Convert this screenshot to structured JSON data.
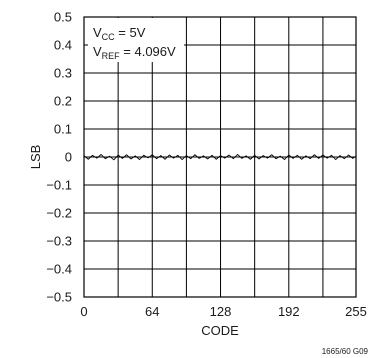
{
  "chart_data": {
    "type": "line",
    "title": "",
    "xlabel": "CODE",
    "ylabel": "LSB",
    "xlim": [
      0,
      255
    ],
    "ylim": [
      -0.5,
      0.5
    ],
    "x_ticks": [
      0,
      64,
      128,
      192,
      255
    ],
    "x_tick_labels": [
      "0",
      "64",
      "128",
      "192",
      "255"
    ],
    "x_grid": [
      0,
      32,
      64,
      96,
      128,
      160,
      192,
      224,
      255
    ],
    "y_ticks": [
      0.5,
      0.4,
      0.3,
      0.2,
      0.1,
      0,
      -0.1,
      -0.2,
      -0.3,
      -0.4,
      -0.5
    ],
    "y_tick_labels": [
      "0.5",
      "0.4",
      "0.3",
      "0.2",
      "0.1",
      "0",
      "−0.1",
      "−0.2",
      "−0.3",
      "−0.4",
      "−0.5"
    ],
    "grid": true,
    "legend": "none",
    "annotations": {
      "line1_main": "V",
      "line1_sub": "CC",
      "line1_rest": " = 5V",
      "line2_main": "V",
      "line2_sub": "REF",
      "line2_rest": " = 4.096V"
    },
    "series": [
      {
        "color": "#000000",
        "x": [
          0,
          4,
          8,
          12,
          16,
          20,
          24,
          28,
          32,
          36,
          40,
          44,
          48,
          52,
          56,
          60,
          64,
          68,
          72,
          76,
          80,
          84,
          88,
          92,
          96,
          100,
          104,
          108,
          112,
          116,
          120,
          124,
          128,
          132,
          136,
          140,
          144,
          148,
          152,
          156,
          160,
          164,
          168,
          172,
          176,
          180,
          184,
          188,
          192,
          196,
          200,
          204,
          208,
          212,
          216,
          220,
          224,
          228,
          232,
          236,
          240,
          244,
          248,
          252,
          255
        ],
        "values": [
          0.005,
          -0.008,
          0.006,
          -0.004,
          0.009,
          -0.006,
          0.003,
          -0.01,
          0.007,
          -0.005,
          0.008,
          -0.007,
          0.004,
          -0.009,
          0.006,
          -0.003,
          0.008,
          -0.006,
          0.005,
          -0.008,
          0.007,
          -0.004,
          0.006,
          -0.009,
          0.005,
          -0.006,
          0.008,
          -0.005,
          0.004,
          -0.007,
          0.006,
          -0.008,
          0.005,
          -0.004,
          0.007,
          -0.006,
          0.009,
          -0.005,
          0.004,
          -0.008,
          0.006,
          -0.007,
          0.005,
          -0.004,
          0.008,
          -0.006,
          0.003,
          -0.009,
          0.007,
          -0.005,
          0.006,
          -0.008,
          0.004,
          -0.006,
          0.008,
          -0.005,
          0.007,
          -0.004,
          0.006,
          -0.009,
          0.005,
          -0.006,
          0.007,
          -0.005,
          0.003
        ]
      }
    ]
  },
  "figure_code": "1665/60 G09"
}
